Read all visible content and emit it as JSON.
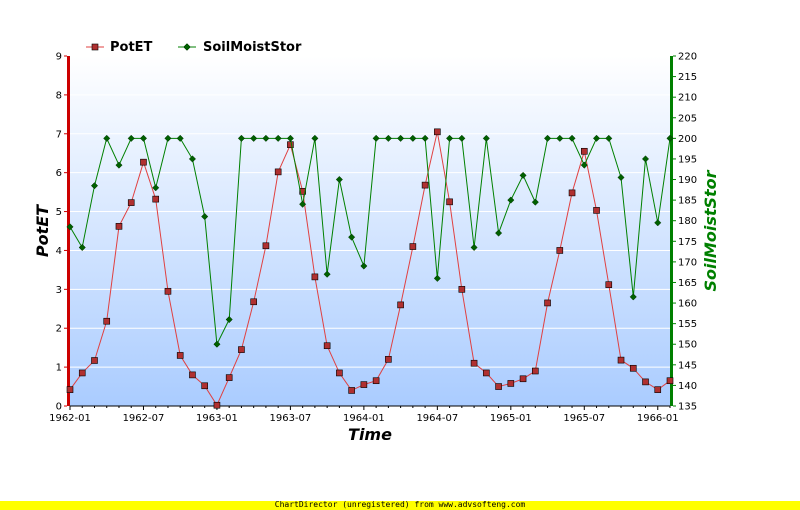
{
  "chart_data": {
    "type": "line",
    "x": [
      "1962-01",
      "1962-02",
      "1962-03",
      "1962-04",
      "1962-05",
      "1962-06",
      "1962-07",
      "1962-08",
      "1962-09",
      "1962-10",
      "1962-11",
      "1962-12",
      "1963-01",
      "1963-02",
      "1963-03",
      "1963-04",
      "1963-05",
      "1963-06",
      "1963-07",
      "1963-08",
      "1963-09",
      "1963-10",
      "1963-11",
      "1963-12",
      "1964-01",
      "1964-02",
      "1964-03",
      "1964-04",
      "1964-05",
      "1964-06",
      "1964-07",
      "1964-08",
      "1964-09",
      "1964-10",
      "1964-11",
      "1964-12",
      "1965-01",
      "1965-02",
      "1965-03",
      "1965-04",
      "1965-05",
      "1965-06",
      "1965-07",
      "1965-08",
      "1965-09",
      "1965-10",
      "1965-11",
      "1965-12",
      "1966-01",
      "1966-02"
    ],
    "xlabel": "Time",
    "x_ticks": [
      "1962-01",
      "1962-07",
      "1963-01",
      "1963-07",
      "1964-01",
      "1964-07",
      "1965-01",
      "1965-07",
      "1966-01"
    ],
    "series": [
      {
        "name": "PotET",
        "axis": "left",
        "color": "#e04040",
        "marker": "square",
        "values": [
          0.42,
          0.85,
          1.17,
          2.18,
          4.62,
          5.23,
          6.27,
          5.32,
          2.95,
          1.3,
          0.8,
          0.52,
          0.02,
          0.73,
          1.45,
          2.68,
          4.12,
          6.02,
          6.72,
          5.52,
          3.32,
          1.55,
          0.85,
          0.4,
          0.55,
          0.65,
          1.2,
          2.6,
          4.1,
          5.68,
          7.05,
          5.25,
          3.0,
          1.1,
          0.85,
          0.5,
          0.58,
          0.7,
          0.9,
          2.65,
          4.0,
          5.48,
          6.55,
          5.03,
          3.12,
          1.18,
          0.97,
          0.62,
          0.42,
          0.65
        ]
      },
      {
        "name": "SoilMoistStor",
        "axis": "right",
        "color": "#008000",
        "marker": "diamond",
        "values": [
          178.5,
          173.5,
          188.5,
          200,
          193.5,
          200,
          200,
          188,
          200,
          200,
          195,
          181,
          150,
          156,
          200,
          200,
          200,
          200,
          200,
          184,
          200,
          167,
          190,
          176,
          169,
          200,
          200,
          200,
          200,
          200,
          166,
          200,
          200,
          173.5,
          200,
          177,
          185,
          191,
          184.5,
          200,
          200,
          200,
          193.5,
          200,
          200,
          190.5,
          161.5,
          195,
          179.5,
          200
        ]
      }
    ],
    "left_axis": {
      "label": "PotET",
      "min": 0,
      "max": 9,
      "ticks": [
        0,
        1,
        2,
        3,
        4,
        5,
        6,
        7,
        8,
        9
      ],
      "color": "#cc0000"
    },
    "right_axis": {
      "label": "SoilMoistStor",
      "min": 135,
      "max": 220,
      "ticks": [
        135,
        140,
        145,
        150,
        155,
        160,
        165,
        170,
        175,
        180,
        185,
        190,
        195,
        200,
        205,
        210,
        215,
        220
      ],
      "color": "#008000"
    },
    "legend_placement": "top-left",
    "grid": true
  },
  "footer": {
    "text": "ChartDirector (unregistered) from www.advsofteng.com"
  }
}
